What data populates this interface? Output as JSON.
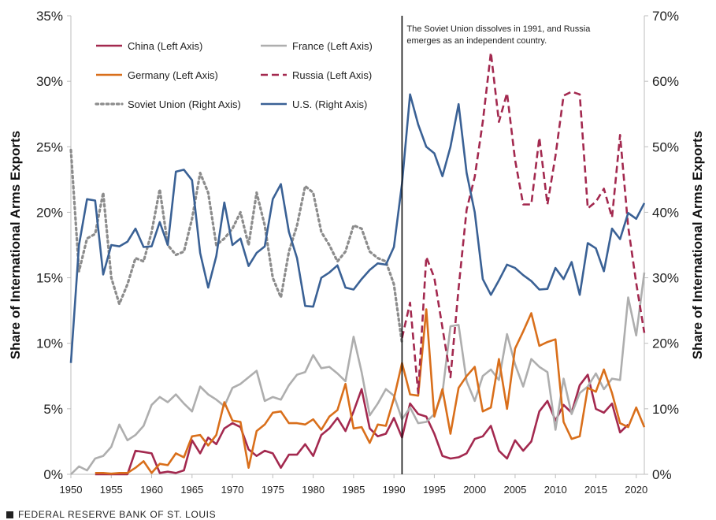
{
  "chart_data": {
    "type": "line",
    "title": "",
    "ylabel_left": "Share of International Arms Exports",
    "ylabel_right": "Share of International Arms Exports",
    "ylim_left": [
      0,
      35
    ],
    "ylim_right": [
      0,
      70
    ],
    "xlim": [
      1950,
      2021
    ],
    "left_ticks": [
      "0%",
      "5%",
      "10%",
      "15%",
      "20%",
      "25%",
      "30%",
      "35%"
    ],
    "right_ticks": [
      "0%",
      "10%",
      "20%",
      "30%",
      "40%",
      "50%",
      "60%",
      "70%"
    ],
    "x_ticks": [
      "1950",
      "1955",
      "1960",
      "1965",
      "1970",
      "1975",
      "1980",
      "1985",
      "1990",
      "1995",
      "2000",
      "2005",
      "2010",
      "2015",
      "2020"
    ],
    "annotation": {
      "x": 1991,
      "line1": "The Soviet Union dissolves in 1991, and Russia",
      "line2": "emerges  as an independent country."
    },
    "series": [
      {
        "name": "China (Left Axis)",
        "axis": "left",
        "color": "#a3294f",
        "style": "solid",
        "x_start": 1953,
        "values": [
          0,
          0,
          0,
          0,
          0,
          1.8,
          1.7,
          1.6,
          0.1,
          0.2,
          0.1,
          0.3,
          2.6,
          1.6,
          2.8,
          2.3,
          3.5,
          3.9,
          3.6,
          1.9,
          1.4,
          1.8,
          1.6,
          0.5,
          1.5,
          1.5,
          2.3,
          1.4,
          3.0,
          3.5,
          4.3,
          3.3,
          4.8,
          6.5,
          3.5,
          2.9,
          3.1,
          4.3,
          2.8,
          5.4,
          4.6,
          4.4,
          3.1,
          1.4,
          1.2,
          1.3,
          1.6,
          2.7,
          2.9,
          3.7,
          1.8,
          1.2,
          2.6,
          1.8,
          2.5,
          4.8,
          5.6,
          4.1,
          5.3,
          4.7,
          6.8,
          7.6,
          5.0,
          4.7,
          5.4,
          3.2,
          3.8
        ]
      },
      {
        "name": "France (Left Axis)",
        "axis": "left",
        "color": "#aeaeae",
        "style": "solid",
        "x_start": 1950,
        "values": [
          0,
          0.6,
          0.3,
          1.2,
          1.4,
          2.1,
          3.8,
          2.6,
          3.0,
          3.7,
          5.3,
          5.9,
          5.5,
          6.1,
          5.4,
          4.8,
          6.7,
          6.1,
          5.7,
          5.2,
          6.6,
          6.9,
          7.4,
          7.9,
          5.6,
          5.9,
          5.7,
          6.8,
          7.6,
          7.8,
          9.1,
          8.1,
          8.2,
          7.7,
          7.1,
          10.5,
          7.8,
          4.5,
          5.4,
          6.5,
          6.0,
          4.2,
          5.1,
          3.9,
          4.0,
          4.6,
          6.2,
          11.3,
          11.4,
          7.1,
          5.6,
          7.5,
          8.0,
          7.2,
          10.7,
          8.4,
          6.7,
          8.8,
          8.2,
          7.8,
          3.4,
          7.3,
          4.6,
          6.2,
          6.7,
          7.7,
          6.5,
          7.3,
          7.2,
          13.5,
          10.6,
          15.4
        ]
      },
      {
        "name": "Germany (Left Axis)",
        "axis": "left",
        "color": "#d96f1b",
        "style": "solid",
        "x_start": 1953,
        "values": [
          0.1,
          0.1,
          0.05,
          0.1,
          0.1,
          0.5,
          1.0,
          0.1,
          0.8,
          0.7,
          1.6,
          1.3,
          2.9,
          3.0,
          2.2,
          3.0,
          5.5,
          4.1,
          4.0,
          0.5,
          3.3,
          3.8,
          4.7,
          4.8,
          3.9,
          3.9,
          3.8,
          4.2,
          3.4,
          4.4,
          4.9,
          6.9,
          3.5,
          3.6,
          2.4,
          3.8,
          3.7,
          5.8,
          8.5,
          6.1,
          6.0,
          12.6,
          4.4,
          6.5,
          3.1,
          6.6,
          7.5,
          8.2,
          4.8,
          5.1,
          8.8,
          5.0,
          9.6,
          10.9,
          12.3,
          9.8,
          10.1,
          10.3,
          4.0,
          2.7,
          2.9,
          6.6,
          6.3,
          8.0,
          6.2,
          3.9,
          3.6,
          5.1,
          3.6
        ]
      },
      {
        "name": "Russia (Left Axis)",
        "axis": "left",
        "color": "#a3294f",
        "style": "dashed",
        "x_start": 1991,
        "values": [
          10.4,
          13.1,
          6.2,
          16.6,
          15.0,
          11.2,
          7.4,
          14.2,
          20.2,
          22.7,
          26.9,
          32.2,
          26.9,
          29.1,
          24.0,
          20.6,
          20.6,
          25.7,
          20.6,
          24.3,
          28.9,
          29.2,
          29.0,
          20.3,
          20.8,
          21.8,
          19.6,
          25.9,
          18.9,
          14.6,
          10.8
        ]
      },
      {
        "name": "Soviet Union (Right Axis)",
        "axis": "right",
        "color": "#8c8c8c",
        "style": "dotted",
        "x_start": 1950,
        "values": [
          49.5,
          31.0,
          36.0,
          36.7,
          43.0,
          30.0,
          26.0,
          29.0,
          33.0,
          32.5,
          37.0,
          43.5,
          35.0,
          33.5,
          34.0,
          39.0,
          46.0,
          43.0,
          35.0,
          36.0,
          37.5,
          40.0,
          35.0,
          43.0,
          38.0,
          30.0,
          27.0,
          34.0,
          38.0,
          44.0,
          43.0,
          37.0,
          35.0,
          32.5,
          34.0,
          38.0,
          37.5,
          34.0,
          33.0,
          32.5,
          29.0,
          20.0
        ]
      },
      {
        "name": "U.S. (Right Axis)",
        "axis": "right",
        "color": "#3a6195",
        "style": "solid",
        "x_start": 1950,
        "values": [
          17.0,
          35.0,
          42.0,
          41.8,
          30.5,
          35.0,
          34.8,
          35.5,
          37.5,
          34.7,
          34.8,
          38.5,
          35.0,
          46.2,
          46.5,
          44.9,
          33.8,
          28.5,
          33.3,
          41.5,
          35.0,
          36.0,
          31.8,
          33.8,
          34.8,
          42.0,
          44.3,
          37.0,
          33.0,
          25.7,
          25.6,
          30.0,
          30.8,
          31.9,
          28.5,
          28.2,
          29.8,
          31.2,
          32.2,
          32.0,
          34.7,
          44.4,
          58.0,
          53.4,
          50.0,
          49.0,
          45.5,
          50.0,
          56.5,
          46.0,
          40.0,
          29.8,
          27.4,
          29.6,
          32.0,
          31.5,
          30.4,
          29.5,
          28.2,
          28.3,
          31.5,
          29.8,
          32.4,
          27.4,
          35.3,
          34.5,
          31.0,
          37.5,
          35.9,
          39.9,
          39.0,
          41.4
        ]
      }
    ]
  },
  "footer": {
    "source": "FEDERAL RESERVE BANK OF ST. LOUIS"
  }
}
